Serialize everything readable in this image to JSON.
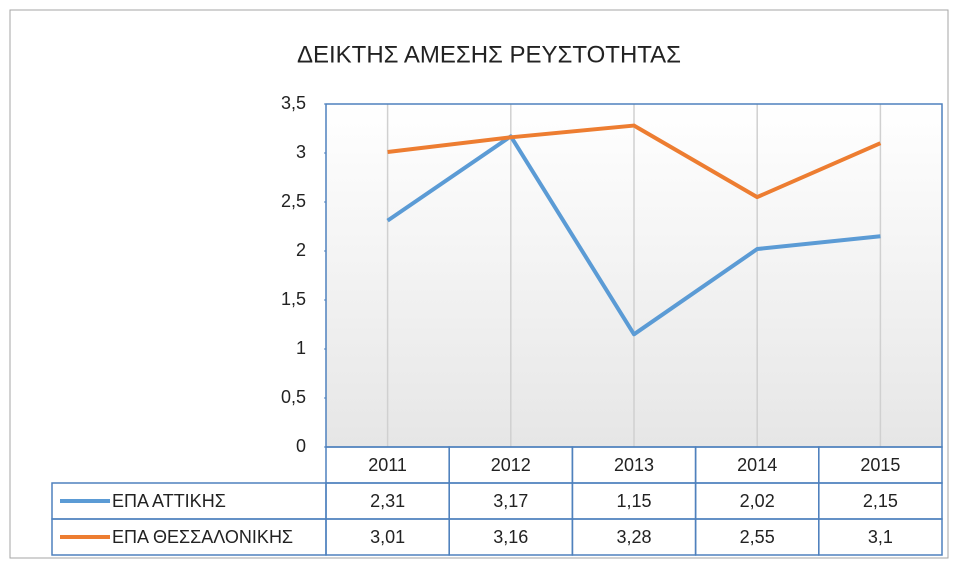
{
  "chart_data": {
    "type": "line",
    "title": "ΔΕΙΚΤΗΣ ΑΜΕΣΗΣ ΡΕΥΣΤΟΤΗΤΑΣ",
    "categories": [
      "2011",
      "2012",
      "2013",
      "2014",
      "2015"
    ],
    "series": [
      {
        "name": "ΕΠΑ ΑΤΤΙΚΗΣ",
        "color": "#5b9bd5",
        "values": [
          2.31,
          3.17,
          1.15,
          2.02,
          2.15
        ],
        "value_labels": [
          "2,31",
          "3,17",
          "1,15",
          "2,02",
          "2,15"
        ]
      },
      {
        "name": "ΕΠΑ ΘΕΣΣΑΛΟΝΙΚΗΣ",
        "color": "#ed7d31",
        "values": [
          3.01,
          3.16,
          3.28,
          2.55,
          3.1
        ],
        "value_labels": [
          "3,01",
          "3,16",
          "3,28",
          "2,55",
          "3,1"
        ]
      }
    ],
    "ylim": [
      0,
      3.5
    ],
    "yticks": [
      0,
      {
        "value": 0.5,
        "label": "0,5"
      },
      1,
      {
        "value": 1.5,
        "label": "1,5"
      },
      2,
      {
        "value": 2.5,
        "label": "2,5"
      },
      3,
      {
        "value": 3.5,
        "label": "3,5"
      }
    ]
  }
}
